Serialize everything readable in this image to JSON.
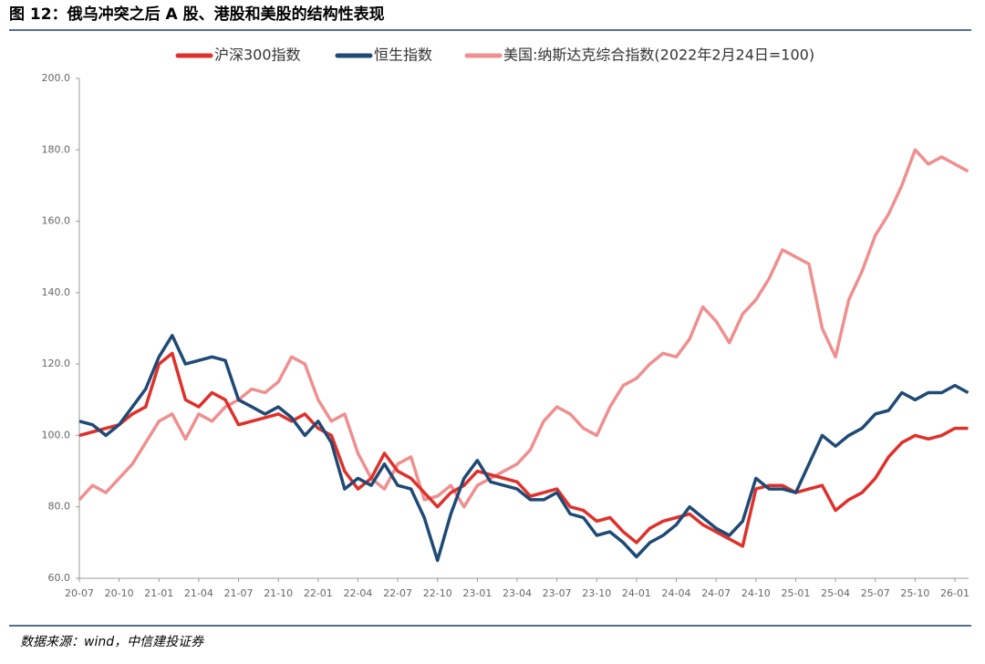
{
  "chart_data": {
    "type": "line",
    "title": "图 12：俄乌冲突之后 A 股、港股和美股的结构性表现",
    "source": "数据来源：wind，中信建投证券",
    "categories": [
      "20-07",
      null,
      null,
      "20-10",
      null,
      null,
      "21-01",
      null,
      null,
      "21-04",
      null,
      null,
      "21-07",
      null,
      null,
      "21-10",
      null,
      null,
      "22-01",
      null,
      null,
      "22-04",
      null,
      null,
      "22-07",
      null,
      null,
      "22-10",
      null,
      null,
      "23-01",
      null,
      null,
      "23-04",
      null,
      null,
      "23-07",
      null,
      null,
      "23-10",
      null,
      null,
      "24-01",
      null,
      null,
      "24-04",
      null,
      null,
      "24-07",
      null,
      null,
      "24-10",
      null,
      null,
      "25-01",
      null,
      null,
      "25-04",
      null,
      null,
      "25-07",
      null,
      null,
      "25-10",
      null,
      null,
      "26-01",
      null
    ],
    "series": [
      {
        "name": "沪深300指数",
        "color": "#e0302a",
        "values": [
          100,
          101,
          102,
          103,
          106,
          108,
          120,
          123,
          110,
          108,
          112,
          110,
          103,
          104,
          105,
          106,
          104,
          106,
          102,
          100,
          90,
          85,
          88,
          95,
          90,
          88,
          84,
          80,
          84,
          86,
          90,
          89,
          88,
          87,
          83,
          84,
          85,
          80,
          79,
          76,
          77,
          73,
          70,
          74,
          76,
          77,
          78,
          75,
          73,
          71,
          69,
          85,
          86,
          86,
          84,
          85,
          86,
          79,
          82,
          84,
          88,
          94,
          98,
          100,
          99,
          100,
          102,
          102
        ]
      },
      {
        "name": "恒生指数",
        "color": "#1f4a75",
        "values": [
          104,
          103,
          100,
          103,
          108,
          113,
          122,
          128,
          120,
          121,
          122,
          121,
          110,
          108,
          106,
          108,
          105,
          100,
          104,
          98,
          85,
          88,
          86,
          92,
          86,
          85,
          77,
          65,
          78,
          88,
          93,
          87,
          86,
          85,
          82,
          82,
          84,
          78,
          77,
          72,
          73,
          70,
          66,
          70,
          72,
          75,
          80,
          77,
          74,
          72,
          76,
          88,
          85,
          85,
          84,
          92,
          100,
          97,
          100,
          102,
          106,
          107,
          112,
          110,
          112,
          112,
          114,
          112
        ]
      },
      {
        "name": "美国:纳斯达克综合指数(2022年2月24日=100)",
        "color": "#ef8f8f",
        "values": [
          82,
          86,
          84,
          88,
          92,
          98,
          104,
          106,
          99,
          106,
          104,
          108,
          110,
          113,
          112,
          115,
          122,
          120,
          110,
          104,
          106,
          95,
          88,
          85,
          92,
          94,
          82,
          83,
          86,
          80,
          86,
          88,
          90,
          92,
          96,
          104,
          108,
          106,
          102,
          100,
          108,
          114,
          116,
          120,
          123,
          122,
          127,
          136,
          132,
          126,
          134,
          138,
          144,
          152,
          150,
          148,
          130,
          122,
          138,
          146,
          156,
          162,
          170,
          180,
          176,
          178,
          176,
          174
        ]
      }
    ],
    "ylim": [
      60,
      200
    ],
    "yticks": [
      {
        "value": 60,
        "label": "60.0"
      },
      {
        "value": 80,
        "label": "80.0"
      },
      {
        "value": 100,
        "label": "100.0"
      },
      {
        "value": 120,
        "label": "120.0"
      },
      {
        "value": 140,
        "label": "140.0"
      },
      {
        "value": 160,
        "label": "160.0"
      },
      {
        "value": 180,
        "label": "180.0"
      },
      {
        "value": 200,
        "label": "200.0"
      }
    ]
  }
}
